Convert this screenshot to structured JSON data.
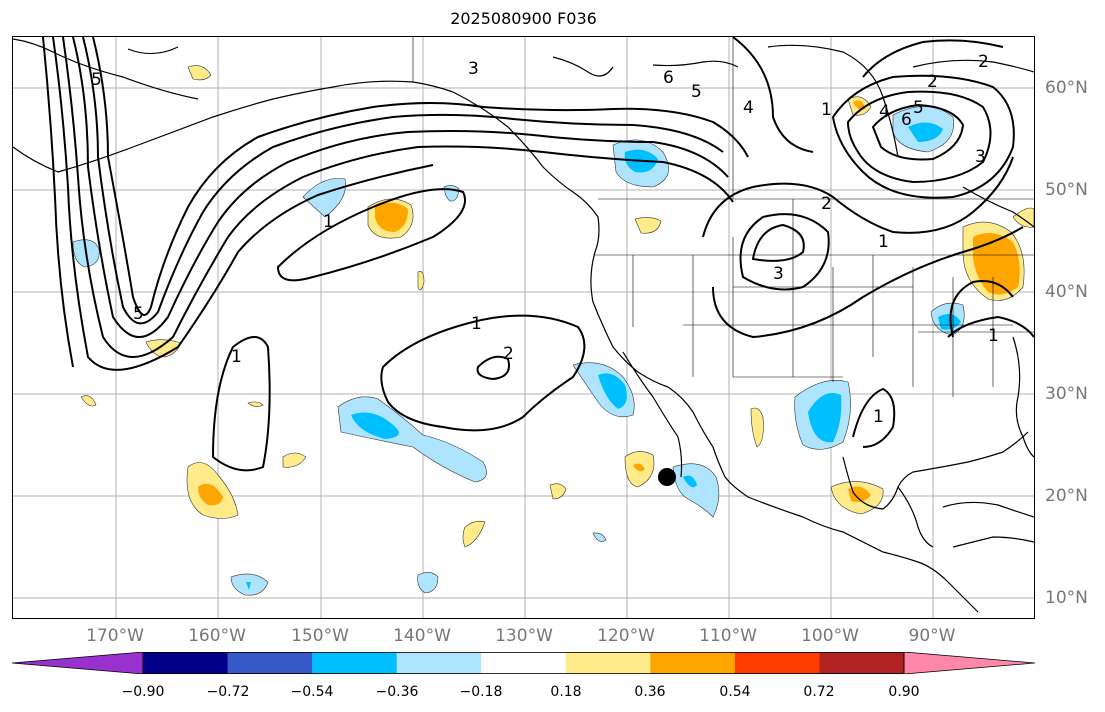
{
  "title": "2025080900 F036",
  "lon_labels": [
    "170°W",
    "160°W",
    "150°W",
    "140°W",
    "130°W",
    "120°W",
    "110°W",
    "100°W",
    "90°W"
  ],
  "lat_labels": [
    "60°N",
    "50°N",
    "40°N",
    "30°N",
    "20°N",
    "10°N"
  ],
  "colorbar": {
    "tick_labels": [
      "−0.90",
      "−0.72",
      "−0.54",
      "−0.36",
      "−0.18",
      "0.18",
      "0.36",
      "0.54",
      "0.72",
      "0.90"
    ],
    "colors": [
      "#9932cc",
      "#00008b",
      "#3658c8",
      "#00bfff",
      "#afe4ff",
      "#ffffff",
      "#ffeb8a",
      "#ffa500",
      "#ff3c00",
      "#b22222",
      "#ff88aa"
    ]
  },
  "contour_labels": [
    "5",
    "5",
    "3",
    "6",
    "5",
    "4",
    "2",
    "4",
    "6",
    "5",
    "2",
    "2",
    "3",
    "1",
    "3",
    "1",
    "1",
    "1",
    "2",
    "1",
    "1",
    "1"
  ],
  "marker": "point"
}
